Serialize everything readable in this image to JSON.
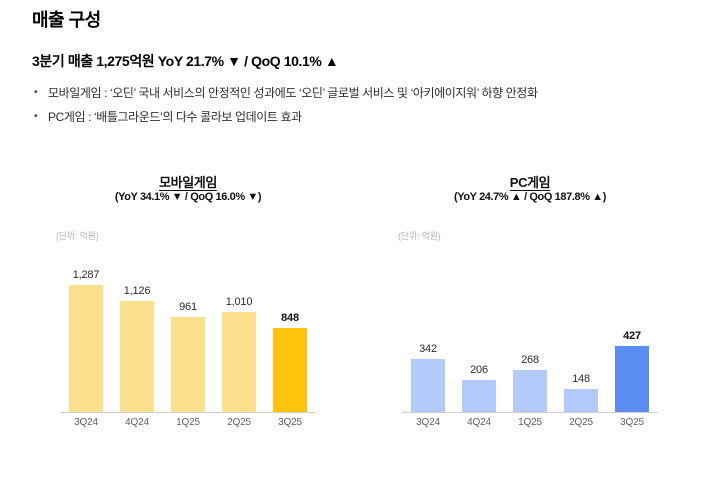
{
  "page": {
    "title": "매출 구성",
    "summary": "3분기 매출 1,275억원 YoY 21.7% ▼ / QoQ 10.1% ▲",
    "bullets": [
      "모바일게임 : ‘오딘’ 국내 서비스의 안정적인 성과에도 ‘오딘’ 글로벌 서비스 및 ‘아키에이지워’ 하향 안정화",
      "PC게임 : ‘배틀그라운드’의 다수 콜라보 업데이트 효과"
    ]
  },
  "colors": {
    "mobile_bar": "#FBE18C",
    "mobile_highlight": "#FFC30B",
    "pc_bar": "#B2CBFA",
    "pc_highlight": "#5B8DF2",
    "axis_line": "#CFCFCF",
    "unit_text": "#B5B5B5"
  },
  "chart_data": [
    {
      "type": "bar",
      "title": "모바일게임",
      "subtitle": "(YoY 34.1% ▼ / QoQ 16.0% ▼)",
      "unit_label": "(단위: 억원)",
      "categories": [
        "3Q24",
        "4Q24",
        "1Q25",
        "2Q25",
        "3Q25"
      ],
      "values": [
        1287,
        1126,
        961,
        1010,
        848
      ],
      "value_labels": [
        "1,287",
        "1,126",
        "961",
        "1,010",
        "848"
      ],
      "highlight_index": 4,
      "bar_color": "#FBE18C",
      "highlight_color": "#FFC30B",
      "ylim": [
        0,
        1350
      ],
      "grid": false,
      "legend": false
    },
    {
      "type": "bar",
      "title": "PC게임",
      "subtitle": "(YoY 24.7% ▲ / QoQ 187.8% ▲)",
      "unit_label": "(단위: 억원)",
      "categories": [
        "3Q24",
        "4Q24",
        "1Q25",
        "2Q25",
        "3Q25"
      ],
      "values": [
        342,
        206,
        268,
        148,
        427
      ],
      "value_labels": [
        "342",
        "206",
        "268",
        "148",
        "427"
      ],
      "highlight_index": 4,
      "bar_color": "#B2CBFA",
      "highlight_color": "#5B8DF2",
      "ylim": [
        0,
        850
      ],
      "grid": false,
      "legend": false
    }
  ]
}
